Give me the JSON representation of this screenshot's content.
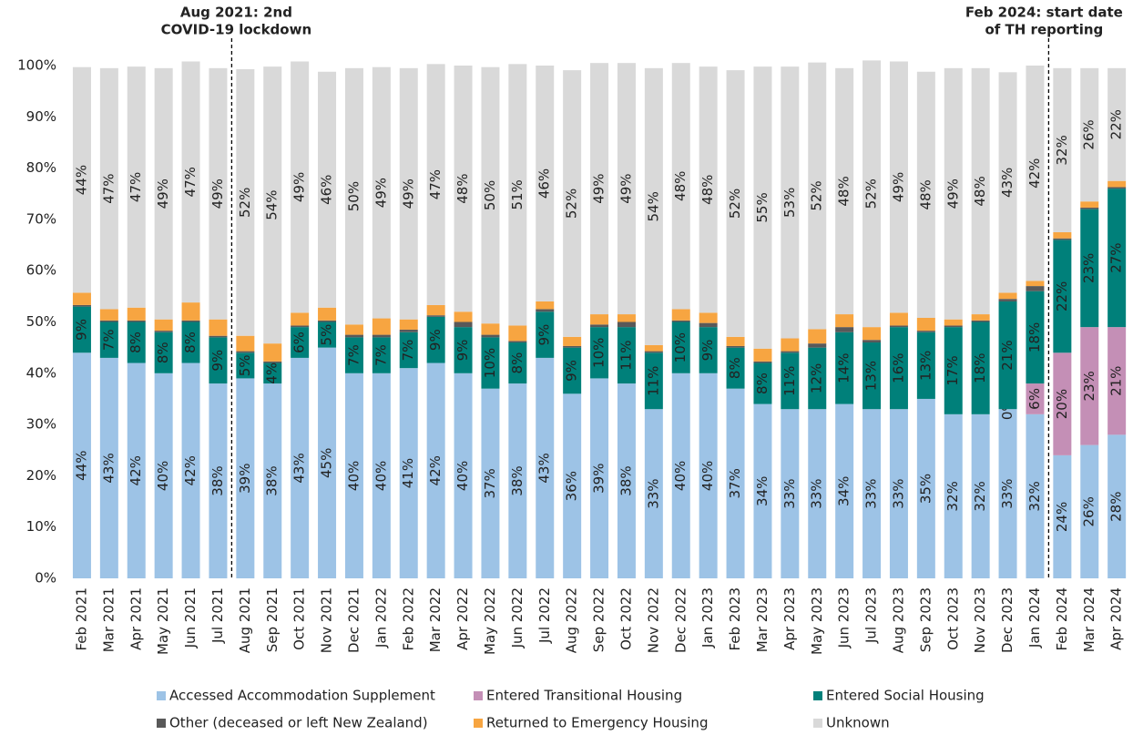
{
  "chart_data": {
    "type": "stacked_bar",
    "categories": [
      "Feb 2021",
      "Mar 2021",
      "Apr 2021",
      "May 2021",
      "Jun 2021",
      "Jul 2021",
      "Aug 2021",
      "Sep 2021",
      "Oct 2021",
      "Nov 2021",
      "Dec 2021",
      "Jan 2022",
      "Feb 2022",
      "Mar 2022",
      "Apr 2022",
      "May 2022",
      "Jun 2022",
      "Jul 2022",
      "Aug 2022",
      "Sep 2022",
      "Oct 2022",
      "Nov 2022",
      "Dec 2022",
      "Jan 2023",
      "Feb 2023",
      "Mar 2023",
      "Apr 2023",
      "May 2023",
      "Jun 2023",
      "Jul 2023",
      "Aug 2023",
      "Sep 2023",
      "Oct 2023",
      "Nov 2023",
      "Dec 2023",
      "Jan 2024",
      "Feb 2024",
      "Mar 2024",
      "Apr 2024"
    ],
    "series": [
      {
        "name": "Accessed Accommodation Supplement",
        "color": "#9dc3e6",
        "values": [
          44,
          43,
          42,
          40,
          42,
          38,
          39,
          38,
          43,
          45,
          40,
          40,
          41,
          42,
          40,
          37,
          38,
          43,
          36,
          39,
          38,
          33,
          40,
          40,
          37,
          34,
          33,
          33,
          34,
          33,
          33,
          35,
          32,
          32,
          33,
          32,
          24,
          26,
          28
        ],
        "value_labels": [
          "44%",
          "43%",
          "42%",
          "40%",
          "42%",
          "38%",
          "39%",
          "38%",
          "43%",
          "45%",
          "40%",
          "40%",
          "41%",
          "42%",
          "40%",
          "37%",
          "38%",
          "43%",
          "36%",
          "39%",
          "38%",
          "33%",
          "40%",
          "40%",
          "37%",
          "34%",
          "33%",
          "33%",
          "34%",
          "33%",
          "33%",
          "35%",
          "32%",
          "32%",
          "33%",
          "32%",
          "24%",
          "26%",
          "28%"
        ]
      },
      {
        "name": "Entered Transitional Housing",
        "color": "#c48fb6",
        "values": [
          null,
          null,
          null,
          null,
          null,
          null,
          null,
          null,
          null,
          null,
          null,
          null,
          null,
          null,
          null,
          null,
          null,
          null,
          null,
          null,
          null,
          null,
          null,
          null,
          null,
          null,
          null,
          null,
          null,
          null,
          null,
          null,
          null,
          null,
          0,
          6,
          20,
          23,
          21
        ],
        "value_labels": [
          null,
          null,
          null,
          null,
          null,
          null,
          null,
          null,
          null,
          null,
          null,
          null,
          null,
          null,
          null,
          null,
          null,
          null,
          null,
          null,
          null,
          null,
          null,
          null,
          null,
          null,
          null,
          null,
          null,
          null,
          null,
          null,
          null,
          null,
          "0%",
          "6%",
          "20%",
          "23%",
          "21%"
        ]
      },
      {
        "name": "Entered Social Housing",
        "color": "#00807a",
        "values": [
          9,
          7,
          8,
          8,
          8,
          9,
          5,
          4,
          6,
          5,
          7,
          7,
          7,
          9,
          9,
          10,
          8,
          9,
          9,
          10,
          11,
          11,
          10,
          9,
          8,
          8,
          11,
          12,
          14,
          13,
          16,
          13,
          17,
          18,
          21,
          18,
          22,
          23,
          27
        ],
        "value_labels": [
          "9%",
          "7%",
          "8%",
          "8%",
          "8%",
          "9%",
          "5%",
          "4%",
          "6%",
          "5%",
          "7%",
          "7%",
          "7%",
          "9%",
          "9%",
          "10%",
          "8%",
          "9%",
          "9%",
          "10%",
          "11%",
          "11%",
          "10%",
          "9%",
          "8%",
          "8%",
          "11%",
          "12%",
          "14%",
          "13%",
          "16%",
          "13%",
          "17%",
          "18%",
          "21%",
          "18%",
          "22%",
          "23%",
          "27%"
        ]
      },
      {
        "name": "Other (deceased or left New Zealand)",
        "color": "#595959",
        "values": [
          0.3,
          0.3,
          0.3,
          0.3,
          0.3,
          0.3,
          0.3,
          0.3,
          0.3,
          0.3,
          0.5,
          0.5,
          0.5,
          0.3,
          1,
          0.5,
          0.3,
          0.5,
          0.3,
          0.5,
          1,
          0.3,
          0.3,
          0.8,
          0.3,
          0.3,
          0.3,
          0.8,
          1,
          0.5,
          0.3,
          0.3,
          0.3,
          0.3,
          0.5,
          1,
          0.3,
          0.3,
          0.3
        ]
      },
      {
        "name": "Returned to Emergency Housing",
        "color": "#f7a541",
        "values": [
          2.4,
          2.2,
          2.5,
          2.2,
          3.5,
          3.2,
          3,
          3.5,
          2.5,
          2.5,
          2,
          3.2,
          2,
          2,
          2,
          2.2,
          3,
          1.5,
          1.8,
          2,
          1.5,
          1.2,
          2.2,
          2,
          1.8,
          2.5,
          2.5,
          2.8,
          2.5,
          2.5,
          2.5,
          2.5,
          1.2,
          1.2,
          1.2,
          1,
          1.2,
          1.2,
          1.2
        ]
      },
      {
        "name": "Unknown",
        "color": "#d9d9d9",
        "values": [
          44,
          47,
          47,
          49,
          47,
          49,
          52,
          54,
          49,
          46,
          50,
          49,
          49,
          47,
          48,
          50,
          51,
          46,
          52,
          49,
          49,
          54,
          48,
          48,
          52,
          55,
          53,
          52,
          48,
          52,
          49,
          48,
          49,
          48,
          43,
          42,
          32,
          26,
          22
        ],
        "value_labels": [
          "44%",
          "47%",
          "47%",
          "49%",
          "47%",
          "49%",
          "52%",
          "54%",
          "49%",
          "46%",
          "50%",
          "49%",
          "49%",
          "47%",
          "48%",
          "50%",
          "51%",
          "46%",
          "52%",
          "49%",
          "49%",
          "54%",
          "48%",
          "48%",
          "52%",
          "55%",
          "53%",
          "52%",
          "48%",
          "52%",
          "49%",
          "48%",
          "49%",
          "48%",
          "43%",
          "42%",
          "32%",
          "26%",
          "22%"
        ]
      }
    ],
    "ylim": [
      0,
      100
    ],
    "yticks": [
      {
        "value": 0,
        "label": "0%"
      },
      {
        "value": 10,
        "label": "10%"
      },
      {
        "value": 20,
        "label": "20%"
      },
      {
        "value": 30,
        "label": "30%"
      },
      {
        "value": 40,
        "label": "40%"
      },
      {
        "value": 50,
        "label": "50%"
      },
      {
        "value": 60,
        "label": "60%"
      },
      {
        "value": 70,
        "label": "70%"
      },
      {
        "value": 80,
        "label": "80%"
      },
      {
        "value": 90,
        "label": "90%"
      },
      {
        "value": 100,
        "label": "100%"
      }
    ],
    "annotations": [
      {
        "lines": [
          "Aug 2021: 2nd",
          "COVID-19 lockdown"
        ]
      },
      {
        "lines": [
          "Feb 2024: start date",
          "of TH reporting"
        ]
      }
    ]
  }
}
